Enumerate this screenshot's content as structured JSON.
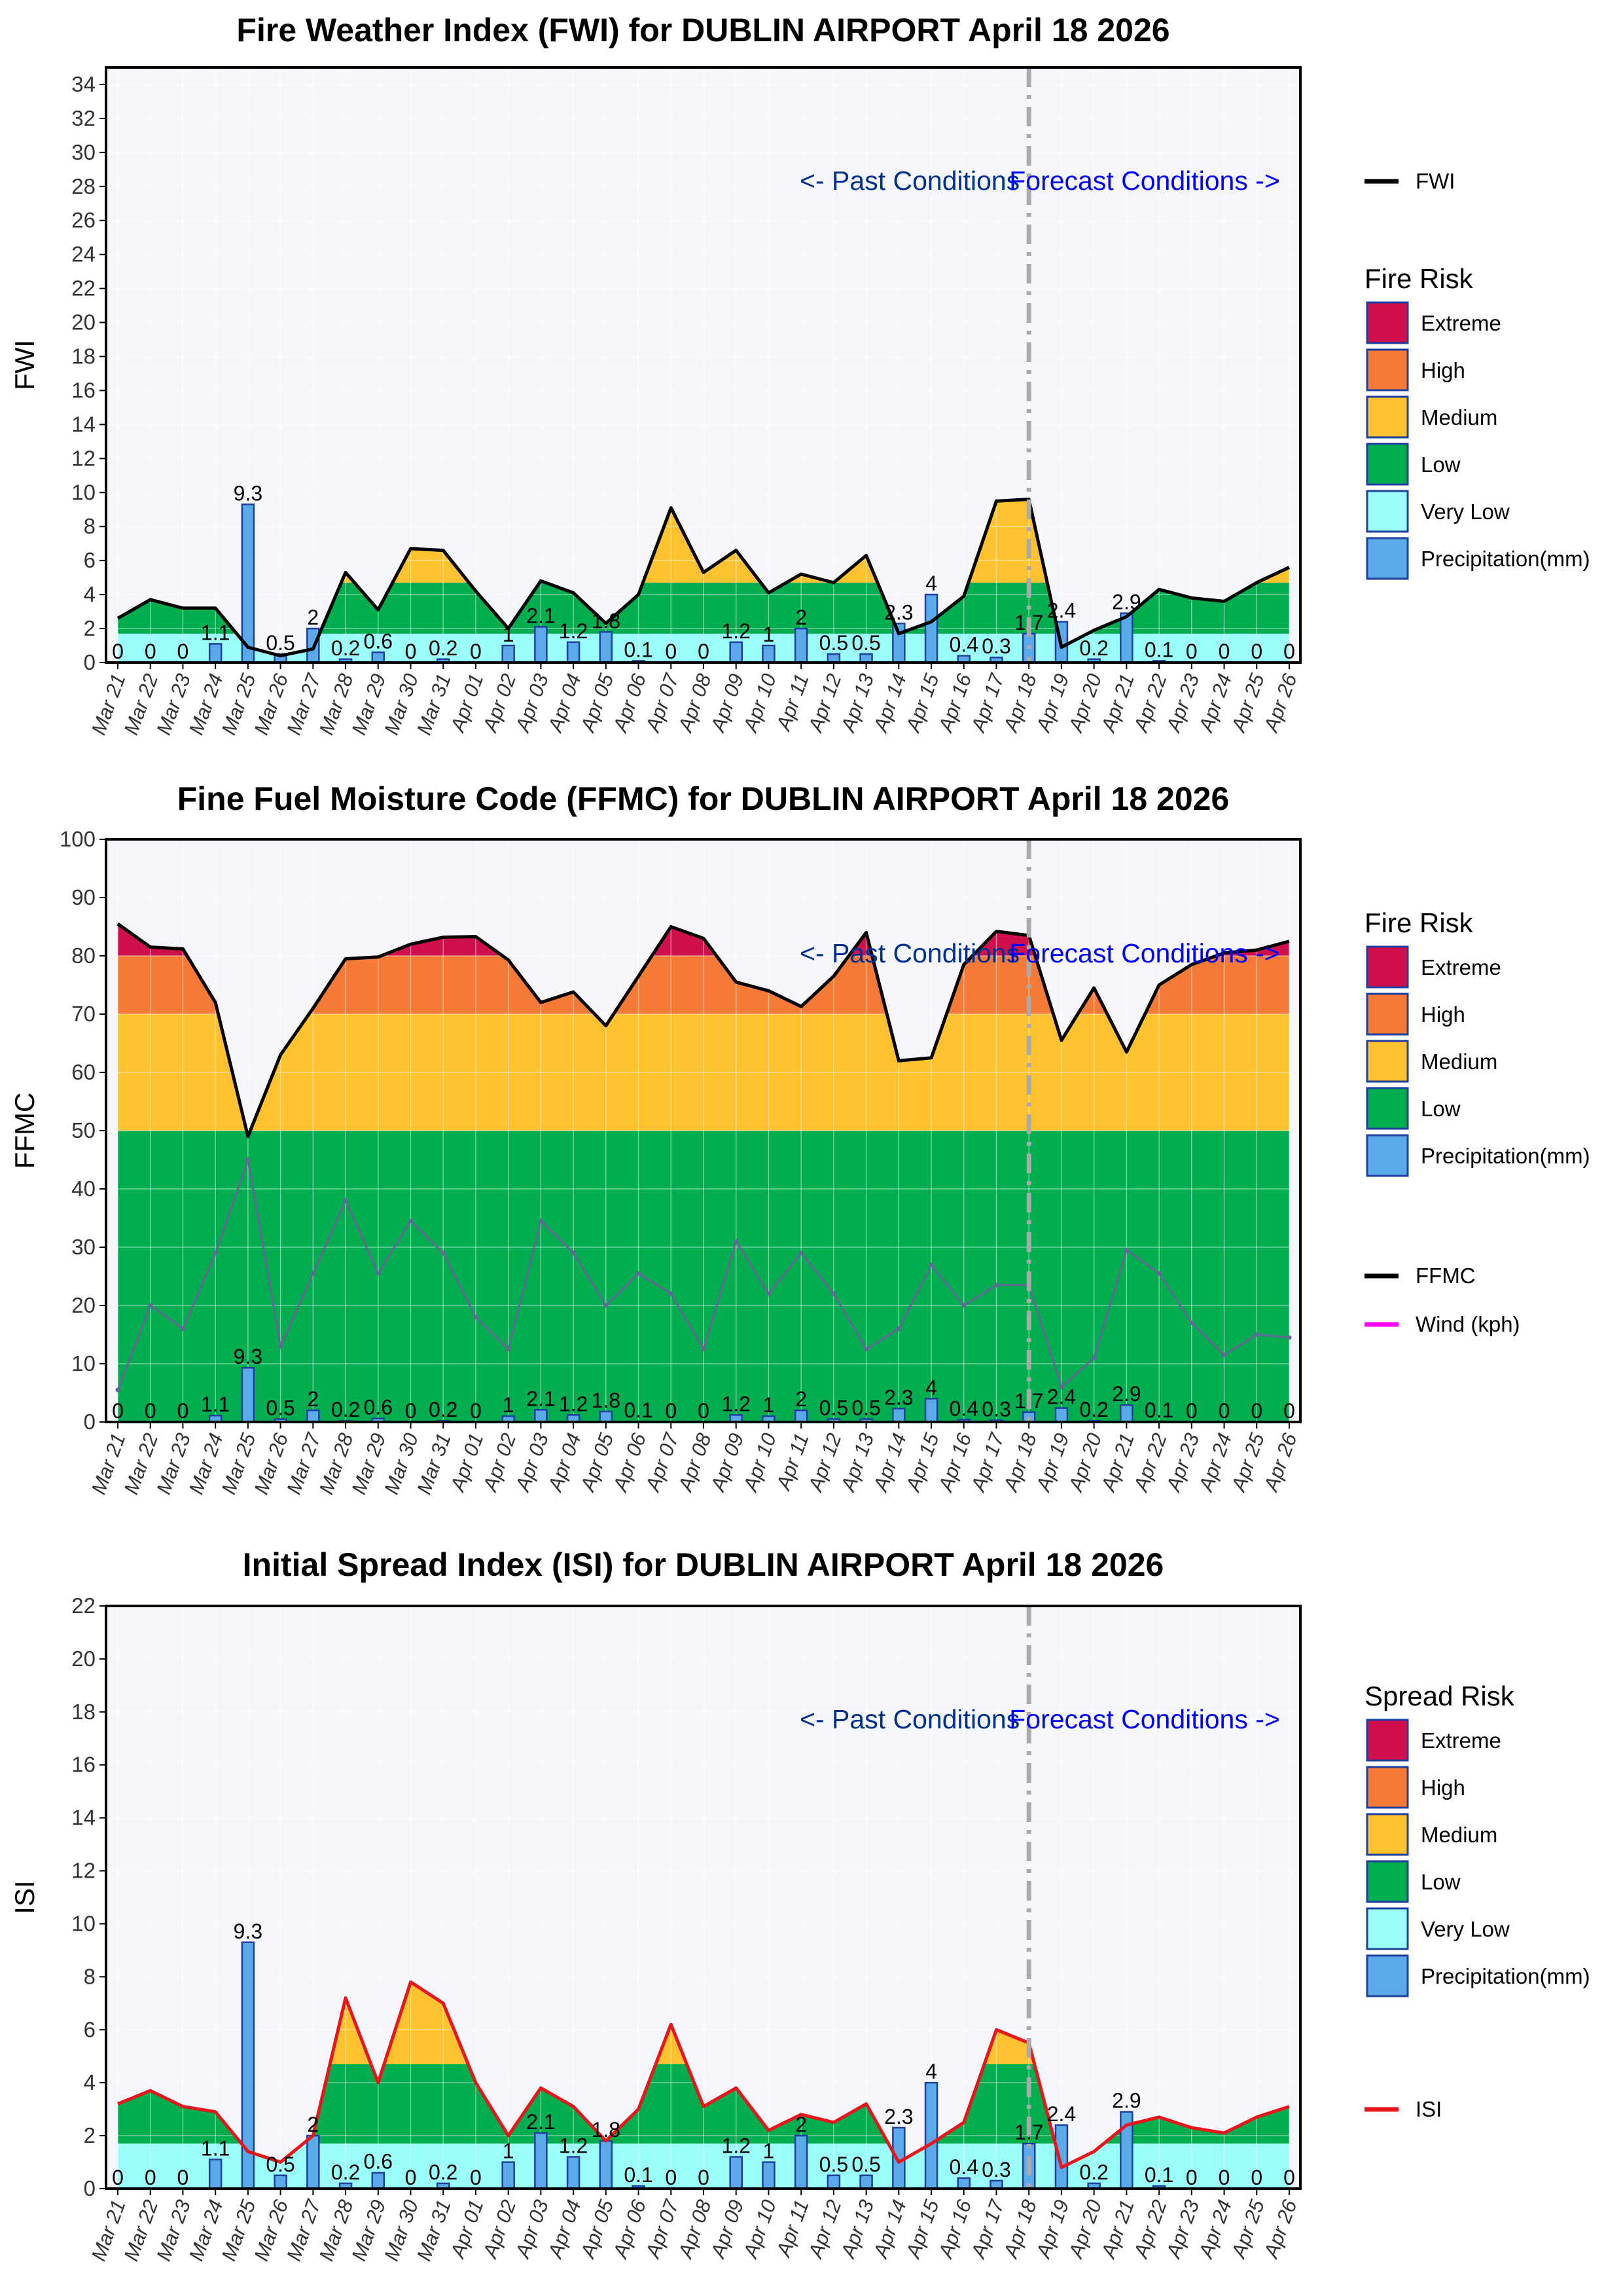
{
  "dates": [
    "Mar 21",
    "Mar 22",
    "Mar 23",
    "Mar 24",
    "Mar 25",
    "Mar 26",
    "Mar 27",
    "Mar 28",
    "Mar 29",
    "Mar 30",
    "Mar 31",
    "Apr 01",
    "Apr 02",
    "Apr 03",
    "Apr 04",
    "Apr 05",
    "Apr 06",
    "Apr 07",
    "Apr 08",
    "Apr 09",
    "Apr 10",
    "Apr 11",
    "Apr 12",
    "Apr 13",
    "Apr 14",
    "Apr 15",
    "Apr 16",
    "Apr 17",
    "Apr 18",
    "Apr 19",
    "Apr 20",
    "Apr 21",
    "Apr 22",
    "Apr 23",
    "Apr 24",
    "Apr 25",
    "Apr 26"
  ],
  "precipitation": [
    0,
    0,
    0,
    1.1,
    9.3,
    0.5,
    2,
    0.2,
    0.6,
    0,
    0.2,
    0,
    1,
    2.1,
    1.2,
    1.8,
    0.1,
    0,
    0,
    1.2,
    1,
    2,
    0.5,
    0.5,
    2.3,
    4,
    0.4,
    0.3,
    1.7,
    2.4,
    0.2,
    2.9,
    0.1,
    0,
    0,
    0,
    0
  ],
  "precipitation_labels": [
    "0",
    "0",
    "0",
    "1.1",
    "9.3",
    "0.5",
    "2",
    "0.2",
    "0.6",
    "0",
    "0.2",
    "0",
    "1",
    "2.1",
    "1.2",
    "1.8",
    "0.1",
    "0",
    "0",
    "1.2",
    "1",
    "2",
    "0.5",
    "0.5",
    "2.3",
    "4",
    "0.4",
    "0.3",
    "1.7",
    "2.4",
    "0.2",
    "2.9",
    "0.1",
    "0",
    "0",
    "0",
    "0"
  ],
  "annotations": {
    "past": "<- Past Conditions",
    "forecast": "Forecast Conditions ->"
  },
  "colors": {
    "extreme": "#d0104c",
    "high": "#f47a35",
    "medium": "#fdc22d",
    "low": "#00ad4f",
    "very_low": "#9bfff9",
    "precip": "#5aaaea",
    "precip_edge": "#1f3f9f",
    "background": "#f5f7fc",
    "fwi_line": "#000000",
    "isi_line": "#e8161b",
    "wind_line": "#666699",
    "wind_legend": "#ff00ff",
    "annot_past": "#00308f",
    "annot_forecast": "#0000ff"
  },
  "chart_data": [
    {
      "type": "area",
      "id": "fwi",
      "title": "Fire Weather Index (FWI) for DUBLIN AIRPORT April 18 2026",
      "ylabel": "FWI",
      "ylim": [
        0,
        35
      ],
      "yticks": [
        0,
        2,
        4,
        6,
        8,
        10,
        12,
        14,
        16,
        18,
        20,
        22,
        24,
        26,
        28,
        30,
        32,
        34
      ],
      "bands": {
        "very_low": 1.7,
        "low": 4.7,
        "medium": 9.5,
        "high": 18.0
      },
      "series": [
        {
          "name": "FWI",
          "values": [
            2.6,
            3.7,
            3.2,
            3.2,
            0.9,
            0.4,
            0.8,
            5.3,
            3.1,
            6.7,
            6.6,
            4.2,
            2.0,
            4.8,
            4.1,
            2.3,
            4.0,
            9.1,
            5.3,
            6.6,
            4.1,
            5.2,
            4.7,
            6.3,
            1.7,
            2.4,
            3.9,
            9.5,
            9.6,
            0.9,
            1.9,
            2.7,
            4.3,
            3.8,
            3.6,
            4.7,
            5.6
          ]
        }
      ],
      "legend_title": "Fire Risk",
      "legend_line": "FWI",
      "legend_items": [
        "Extreme",
        "High",
        "Medium",
        "Low",
        "Very Low",
        "Precipitation(mm)"
      ],
      "past_forecast_split": "Apr 18"
    },
    {
      "type": "area",
      "id": "ffmc",
      "title": "Fine Fuel Moisture Code (FFMC) for DUBLIN AIRPORT April 18 2026",
      "ylabel": "FFMC",
      "ylim": [
        0,
        100
      ],
      "yticks": [
        0,
        10,
        20,
        30,
        40,
        50,
        60,
        70,
        80,
        90,
        100
      ],
      "bands": {
        "low": 50,
        "medium": 70,
        "high": 80
      },
      "series": [
        {
          "name": "FFMC",
          "values": [
            85.5,
            81.5,
            81.2,
            72.0,
            49.0,
            63.0,
            71.0,
            79.5,
            79.8,
            82.0,
            83.2,
            83.3,
            79.3,
            72.0,
            73.8,
            68.0,
            76.5,
            85.0,
            83.0,
            75.5,
            74.0,
            71.3,
            76.5,
            84.0,
            62.0,
            62.5,
            78.5,
            84.2,
            83.5,
            65.5,
            74.5,
            63.5,
            75.0,
            78.5,
            80.5,
            81.0,
            82.5
          ]
        },
        {
          "name": "Wind (kph)",
          "values": [
            5.5,
            20,
            16,
            29,
            45,
            13,
            25.5,
            38,
            25.5,
            34.5,
            29,
            18,
            12.5,
            34.5,
            29,
            20,
            25.5,
            22,
            12.5,
            31,
            22,
            29,
            22,
            12.5,
            16,
            27,
            20,
            23.5,
            23.5,
            6,
            11,
            29.5,
            25.5,
            17,
            11.5,
            15,
            14.5
          ]
        }
      ],
      "legend_title": "Fire Risk",
      "legend_lines": [
        "FFMC",
        "Wind (kph)"
      ],
      "legend_items": [
        "Extreme",
        "High",
        "Medium",
        "Low",
        "Precipitation(mm)"
      ],
      "past_forecast_split": "Apr 18"
    },
    {
      "type": "area",
      "id": "isi",
      "title": "Initial Spread Index (ISI) for DUBLIN AIRPORT April 18 2026",
      "ylabel": "ISI",
      "ylim": [
        0,
        22
      ],
      "yticks": [
        0,
        2,
        4,
        6,
        8,
        10,
        12,
        14,
        16,
        18,
        20,
        22
      ],
      "bands": {
        "very_low": 1.7,
        "low": 4.7,
        "medium": 10.0,
        "high": 16.0
      },
      "series": [
        {
          "name": "ISI",
          "values": [
            3.2,
            3.7,
            3.1,
            2.9,
            1.4,
            1.0,
            2.0,
            7.2,
            4.0,
            7.8,
            7.0,
            4.0,
            2.0,
            3.8,
            3.1,
            1.8,
            3.0,
            6.2,
            3.1,
            3.8,
            2.2,
            2.8,
            2.5,
            3.2,
            1.0,
            1.7,
            2.5,
            6.0,
            5.5,
            0.8,
            1.4,
            2.4,
            2.7,
            2.3,
            2.1,
            2.7,
            3.1
          ]
        }
      ],
      "legend_title": "Spread Risk",
      "legend_line": "ISI",
      "legend_items": [
        "Extreme",
        "High",
        "Medium",
        "Low",
        "Very Low",
        "Precipitation(mm)"
      ],
      "past_forecast_split": "Apr 18"
    }
  ]
}
